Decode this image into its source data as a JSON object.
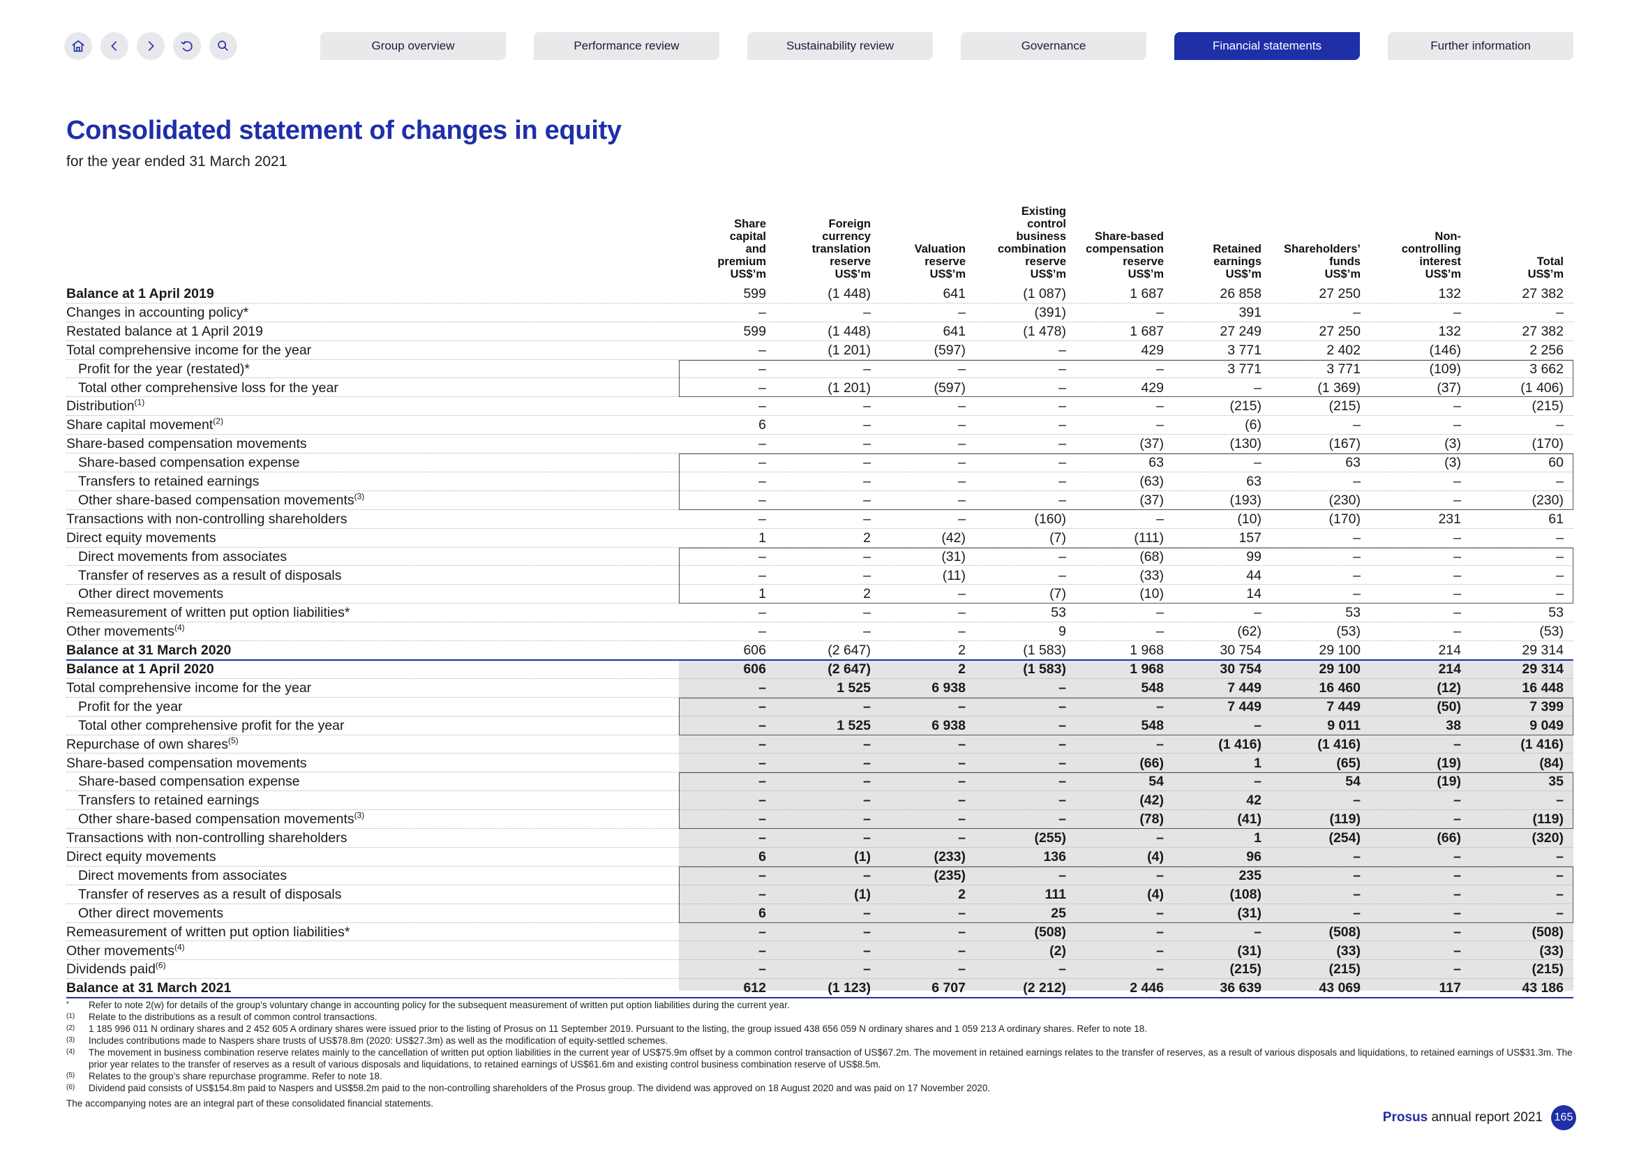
{
  "nav": {
    "icons": [
      "home-icon",
      "back-icon",
      "forward-icon",
      "undo-icon",
      "search-icon"
    ],
    "tabs": [
      "Group overview",
      "Performance review",
      "Sustainability review",
      "Governance",
      "Financial statements",
      "Further information"
    ],
    "active_tab": "Financial statements"
  },
  "page": {
    "title": "Consolidated statement of changes in equity",
    "subtitle": "for the year ended 31 March 2021"
  },
  "columns": [
    "Share\ncapital\nand\npremium\nUS$’m",
    "Foreign\ncurrency\ntranslation\nreserve\nUS$’m",
    "Valuation\nreserve\nUS$’m",
    "Existing\ncontrol\nbusiness\ncombination\nreserve\nUS$’m",
    "Share-based\ncompensation\nreserve\nUS$’m",
    "Retained\nearnings\nUS$’m",
    "Shareholders’\nfunds\nUS$’m",
    "Non-\ncontrolling\ninterest\nUS$’m",
    "Total\nUS$’m"
  ],
  "rows": [
    {
      "label": "Balance at 1 April 2019",
      "sup": "",
      "values": [
        "599",
        "(1 448)",
        "641",
        "(1 087)",
        "1 687",
        "26 858",
        "27 250",
        "132",
        "27 382"
      ]
    },
    {
      "label": "Changes in accounting policy*",
      "sup": "",
      "values": [
        "–",
        "–",
        "–",
        "(391)",
        "–",
        "391",
        "–",
        "–",
        "–"
      ]
    },
    {
      "label": "Restated balance at 1 April 2019",
      "sup": "",
      "values": [
        "599",
        "(1 448)",
        "641",
        "(1 478)",
        "1 687",
        "27 249",
        "27 250",
        "132",
        "27 382"
      ]
    },
    {
      "label": "Total comprehensive income for the year",
      "sup": "",
      "values": [
        "–",
        "(1 201)",
        "(597)",
        "–",
        "429",
        "3 771",
        "2 402",
        "(146)",
        "2 256"
      ]
    },
    {
      "label": "Profit for the year (restated)*",
      "sup": "",
      "values": [
        "–",
        "–",
        "–",
        "–",
        "–",
        "3 771",
        "3 771",
        "(109)",
        "3 662"
      ]
    },
    {
      "label": "Total other comprehensive loss for the year",
      "sup": "",
      "values": [
        "–",
        "(1 201)",
        "(597)",
        "–",
        "429",
        "–",
        "(1 369)",
        "(37)",
        "(1 406)"
      ]
    },
    {
      "label": "Distribution",
      "sup": "(1)",
      "values": [
        "–",
        "–",
        "–",
        "–",
        "–",
        "(215)",
        "(215)",
        "–",
        "(215)"
      ]
    },
    {
      "label": "Share capital movement",
      "sup": "(2)",
      "values": [
        "6",
        "–",
        "–",
        "–",
        "–",
        "(6)",
        "–",
        "–",
        "–"
      ]
    },
    {
      "label": "Share-based compensation movements",
      "sup": "",
      "values": [
        "–",
        "–",
        "–",
        "–",
        "(37)",
        "(130)",
        "(167)",
        "(3)",
        "(170)"
      ]
    },
    {
      "label": "Share-based compensation expense",
      "sup": "",
      "values": [
        "–",
        "–",
        "–",
        "–",
        "63",
        "–",
        "63",
        "(3)",
        "60"
      ]
    },
    {
      "label": "Transfers to retained earnings",
      "sup": "",
      "values": [
        "–",
        "–",
        "–",
        "–",
        "(63)",
        "63",
        "–",
        "–",
        "–"
      ]
    },
    {
      "label": "Other share-based compensation movements",
      "sup": "(3)",
      "values": [
        "–",
        "–",
        "–",
        "–",
        "(37)",
        "(193)",
        "(230)",
        "–",
        "(230)"
      ]
    },
    {
      "label": "Transactions with non-controlling shareholders",
      "sup": "",
      "values": [
        "–",
        "–",
        "–",
        "(160)",
        "–",
        "(10)",
        "(170)",
        "231",
        "61"
      ]
    },
    {
      "label": "Direct equity movements",
      "sup": "",
      "values": [
        "1",
        "2",
        "(42)",
        "(7)",
        "(111)",
        "157",
        "–",
        "–",
        "–"
      ]
    },
    {
      "label": "Direct movements from associates",
      "sup": "",
      "values": [
        "–",
        "–",
        "(31)",
        "–",
        "(68)",
        "99",
        "–",
        "–",
        "–"
      ]
    },
    {
      "label": "Transfer of reserves as a result of disposals",
      "sup": "",
      "values": [
        "–",
        "–",
        "(11)",
        "–",
        "(33)",
        "44",
        "–",
        "–",
        "–"
      ]
    },
    {
      "label": "Other direct movements",
      "sup": "",
      "values": [
        "1",
        "2",
        "–",
        "(7)",
        "(10)",
        "14",
        "–",
        "–",
        "–"
      ]
    },
    {
      "label": "Remeasurement of written put option liabilities*",
      "sup": "",
      "values": [
        "–",
        "–",
        "–",
        "53",
        "–",
        "–",
        "53",
        "–",
        "53"
      ]
    },
    {
      "label": "Other movements",
      "sup": "(4)",
      "values": [
        "–",
        "–",
        "–",
        "9",
        "–",
        "(62)",
        "(53)",
        "–",
        "(53)"
      ]
    },
    {
      "label": "Balance at 31 March 2020",
      "sup": "",
      "values": [
        "606",
        "(2 647)",
        "2",
        "(1 583)",
        "1 968",
        "30 754",
        "29 100",
        "214",
        "29 314"
      ]
    },
    {
      "label": "Balance at 1 April 2020",
      "sup": "",
      "values": [
        "606",
        "(2 647)",
        "2",
        "(1 583)",
        "1 968",
        "30 754",
        "29 100",
        "214",
        "29 314"
      ]
    },
    {
      "label": "Total comprehensive income for the year",
      "sup": "",
      "values": [
        "–",
        "1 525",
        "6 938",
        "–",
        "548",
        "7 449",
        "16 460",
        "(12)",
        "16 448"
      ]
    },
    {
      "label": "Profit for the year",
      "sup": "",
      "values": [
        "–",
        "–",
        "–",
        "–",
        "–",
        "7 449",
        "7 449",
        "(50)",
        "7 399"
      ]
    },
    {
      "label": "Total other comprehensive profit for the year",
      "sup": "",
      "values": [
        "–",
        "1 525",
        "6 938",
        "–",
        "548",
        "–",
        "9 011",
        "38",
        "9 049"
      ]
    },
    {
      "label": "Repurchase of own shares",
      "sup": "(5)",
      "values": [
        "–",
        "–",
        "–",
        "–",
        "–",
        "(1 416)",
        "(1 416)",
        "–",
        "(1 416)"
      ]
    },
    {
      "label": "Share-based compensation movements",
      "sup": "",
      "values": [
        "–",
        "–",
        "–",
        "–",
        "(66)",
        "1",
        "(65)",
        "(19)",
        "(84)"
      ]
    },
    {
      "label": "Share-based compensation expense",
      "sup": "",
      "values": [
        "–",
        "–",
        "–",
        "–",
        "54",
        "–",
        "54",
        "(19)",
        "35"
      ]
    },
    {
      "label": "Transfers to retained earnings",
      "sup": "",
      "values": [
        "–",
        "–",
        "–",
        "–",
        "(42)",
        "42",
        "–",
        "–",
        "–"
      ]
    },
    {
      "label": "Other share-based compensation movements",
      "sup": "(3)",
      "values": [
        "–",
        "–",
        "–",
        "–",
        "(78)",
        "(41)",
        "(119)",
        "–",
        "(119)"
      ]
    },
    {
      "label": "Transactions with non-controlling shareholders",
      "sup": "",
      "values": [
        "–",
        "–",
        "–",
        "(255)",
        "–",
        "1",
        "(254)",
        "(66)",
        "(320)"
      ]
    },
    {
      "label": "Direct equity movements",
      "sup": "",
      "values": [
        "6",
        "(1)",
        "(233)",
        "136",
        "(4)",
        "96",
        "–",
        "–",
        "–"
      ]
    },
    {
      "label": "Direct movements from associates",
      "sup": "",
      "values": [
        "–",
        "–",
        "(235)",
        "–",
        "–",
        "235",
        "–",
        "–",
        "–"
      ]
    },
    {
      "label": "Transfer of reserves as a result of disposals",
      "sup": "",
      "values": [
        "–",
        "(1)",
        "2",
        "111",
        "(4)",
        "(108)",
        "–",
        "–",
        "–"
      ]
    },
    {
      "label": "Other direct movements",
      "sup": "",
      "values": [
        "6",
        "–",
        "–",
        "25",
        "–",
        "(31)",
        "–",
        "–",
        "–"
      ]
    },
    {
      "label": "Remeasurement of written put option liabilities*",
      "sup": "",
      "values": [
        "–",
        "–",
        "–",
        "(508)",
        "–",
        "–",
        "(508)",
        "–",
        "(508)"
      ]
    },
    {
      "label": "Other movements",
      "sup": "(4)",
      "values": [
        "–",
        "–",
        "–",
        "(2)",
        "–",
        "(31)",
        "(33)",
        "–",
        "(33)"
      ]
    },
    {
      "label": "Dividends paid",
      "sup": "(6)",
      "values": [
        "–",
        "–",
        "–",
        "–",
        "–",
        "(215)",
        "(215)",
        "–",
        "(215)"
      ]
    },
    {
      "label": "Balance at 31 March 2021",
      "sup": "",
      "values": [
        "612",
        "(1 123)",
        "6 707",
        "(2 212)",
        "2 446",
        "36 639",
        "43 069",
        "117",
        "43 186"
      ]
    }
  ],
  "footnotes": [
    {
      "mark": "*",
      "text": "Refer to note 2(w) for details of the group’s voluntary change in accounting policy for the subsequent measurement of written put option liabilities during the current year."
    },
    {
      "mark": "(1)",
      "text": "Relate to the distributions as a result of common control transactions."
    },
    {
      "mark": "(2)",
      "text": "1 185 996 011 N ordinary shares and 2 452 605 A ordinary shares were issued prior to the listing of Prosus on 11 September 2019. Pursuant to the listing, the group issued 438 656 059 N ordinary shares and 1 059 213 A ordinary shares. Refer to note 18."
    },
    {
      "mark": "(3)",
      "text": "Includes contributions made to Naspers share trusts of US$78.8m (2020: US$27.3m) as well as the modification of equity-settled schemes."
    },
    {
      "mark": "(4)",
      "text": "The movement in business combination reserve relates mainly to the cancellation of written put option liabilities in the current year of US$75.9m offset by a common control transaction of US$67.2m. The movement in retained earnings relates to the transfer of reserves, as a result of various disposals and liquidations, to retained earnings of US$31.3m. The prior year relates to the transfer of reserves as a result of various disposals and liquidations, to retained earnings of US$61.6m and existing control business combination reserve of US$8.5m."
    },
    {
      "mark": "(5)",
      "text": "Relates to the group’s share repurchase programme. Refer to note 18."
    },
    {
      "mark": "(6)",
      "text": "Dividend paid consists of US$154.8m paid to Naspers and US$58.2m paid to the non-controlling shareholders of the Prosus group. The dividend was approved on 18 August 2020 and was paid on 17 November 2020."
    }
  ],
  "closing": "The accompanying notes are an integral part of these consolidated financial statements.",
  "footer": {
    "brand": "Prosus",
    "text": "annual report 2021",
    "page": "165"
  },
  "colors": {
    "brand_blue": "#1f2fa8",
    "shade": "#e4e4e6"
  }
}
